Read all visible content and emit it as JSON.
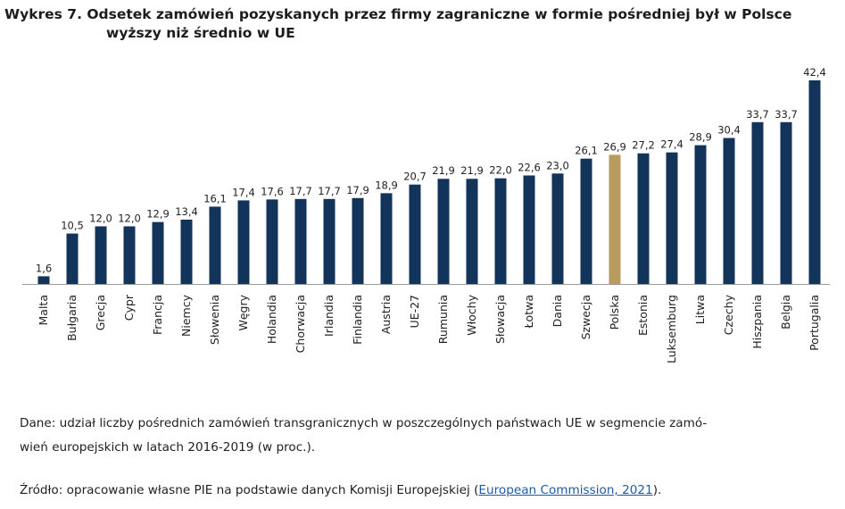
{
  "title": {
    "line1": "Wykres 7. Odsetek zamówień pozyskanych przez firmy zagraniczne w formie pośredniej był w Polsce",
    "line2": "wyższy niż średnio w UE"
  },
  "chart_data": {
    "type": "bar",
    "categories": [
      "Malta",
      "Bułgaria",
      "Grecja",
      "Cypr",
      "Francja",
      "Niemcy",
      "Słowenia",
      "Węgry",
      "Holandia",
      "Chorwacja",
      "Irlandia",
      "Finlandia",
      "Austria",
      "UE-27",
      "Rumunia",
      "Włochy",
      "Słowacja",
      "Łotwa",
      "Dania",
      "Szwecja",
      "Polska",
      "Estonia",
      "Luksemburg",
      "Litwa",
      "Czechy",
      "Hiszpania",
      "Belgia",
      "Portugalia"
    ],
    "values": [
      1.6,
      10.5,
      12.0,
      12.0,
      12.9,
      13.4,
      16.1,
      17.4,
      17.6,
      17.7,
      17.7,
      17.9,
      18.9,
      20.7,
      21.9,
      21.9,
      22.0,
      22.6,
      23.0,
      26.1,
      26.9,
      27.2,
      27.4,
      28.9,
      30.4,
      33.7,
      33.7,
      42.4
    ],
    "value_labels": [
      "1,6",
      "10,5",
      "12,0",
      "12,0",
      "12,9",
      "13,4",
      "16,1",
      "17,4",
      "17,6",
      "17,7",
      "17,7",
      "17,9",
      "18,9",
      "20,7",
      "21,9",
      "21,9",
      "22,0",
      "22,6",
      "23,0",
      "26,1",
      "26,9",
      "27,2",
      "27,4",
      "28,9",
      "30,4",
      "33,7",
      "33,7",
      "42,4"
    ],
    "highlight_category": "Polska",
    "ylim": [
      0,
      42.4
    ],
    "grid": false,
    "legend": "none",
    "colors": {
      "bar": "#12335a",
      "highlight": "#b89b5e",
      "axis": "#9a9a9a"
    }
  },
  "notes": {
    "data_line1": "Dane: udział liczby pośrednich zamówień transgranicznych w poszczególnych państwach UE w segmencie zamó-",
    "data_line2": "wień europejskich w latach 2016-2019 (w proc.).",
    "source_prefix": "Źródło: opracowanie własne PIE na podstawie danych Komisji Europejskiej (",
    "source_link": "European Commission, 2021",
    "source_suffix": ")."
  }
}
